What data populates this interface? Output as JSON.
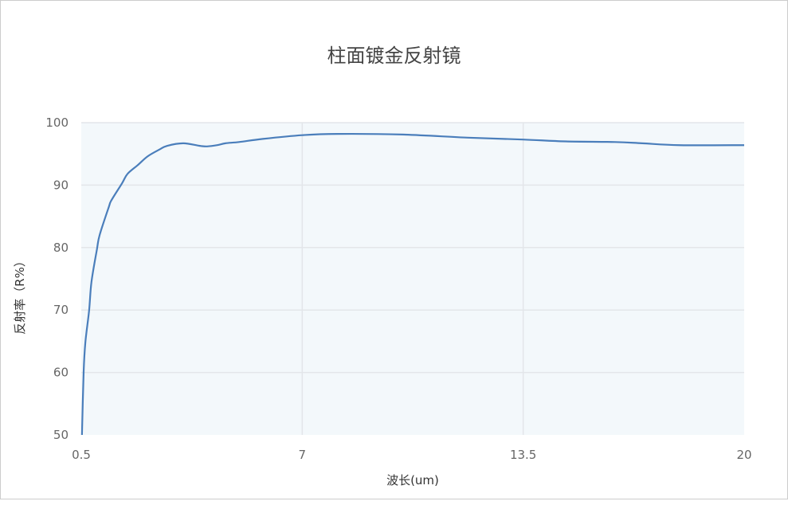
{
  "chart_data": {
    "type": "line",
    "title": "柱面镀金反射镜",
    "xlabel": "波长(um)",
    "ylabel": "反射率（R%）",
    "xlim": [
      0.5,
      20
    ],
    "ylim": [
      50,
      100
    ],
    "x_ticks": [
      "0.5",
      "7",
      "13.5",
      "20"
    ],
    "y_ticks": [
      "50",
      "60",
      "70",
      "80",
      "90",
      "100"
    ],
    "grid": true,
    "line_color": "#4a7ebb",
    "plot_background": "#f3f8fb",
    "series": [
      {
        "x": [
          0.52,
          0.57,
          0.62,
          0.73,
          0.8,
          0.96,
          1.04,
          1.31,
          1.39,
          1.7,
          1.86,
          2.16,
          2.45,
          2.8,
          3.03,
          3.5,
          3.97,
          4.2,
          4.5,
          4.74,
          5.14,
          5.84,
          7,
          8.03,
          9.95,
          11.87,
          13.5,
          14.75,
          16.2,
          17.0,
          18.1,
          20
        ],
        "y": [
          50,
          60.1,
          64.8,
          69.9,
          74.5,
          79.7,
          82.0,
          86.5,
          87.6,
          90.3,
          91.8,
          93.2,
          94.6,
          95.7,
          96.3,
          96.7,
          96.3,
          96.2,
          96.4,
          96.7,
          96.9,
          97.4,
          98.0,
          98.2,
          98.1,
          97.6,
          97.3,
          97.0,
          96.9,
          96.7,
          96.4,
          96.4
        ]
      }
    ]
  }
}
